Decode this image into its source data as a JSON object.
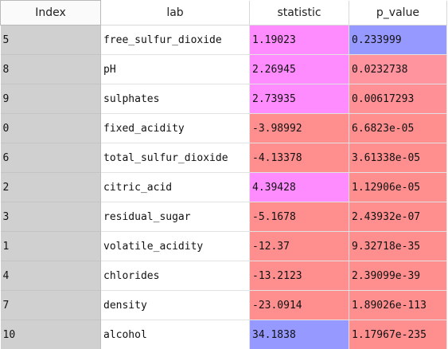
{
  "columns": [
    "Index",
    "lab",
    "statistic",
    "p_value"
  ],
  "colors": {
    "stat_pos": "#ff8cff",
    "stat_neg": "#ff8f8f",
    "stat_max": "#9699ff",
    "pval_low": "#ff8f8f",
    "pval_mid": "#ff9898",
    "pval_high": "#9699ff",
    "index_bg": "#d0d0d0"
  },
  "rows": [
    {
      "index": "5",
      "lab": "free_sulfur_dioxide",
      "statistic": "1.19023",
      "p_value": "0.233999",
      "stat_color": "#ff8cff",
      "pval_color": "#9699ff"
    },
    {
      "index": "8",
      "lab": "pH",
      "statistic": "2.26945",
      "p_value": "0.0232738",
      "stat_color": "#ff8cff",
      "pval_color": "#ff939e"
    },
    {
      "index": "9",
      "lab": "sulphates",
      "statistic": "2.73935",
      "p_value": "0.00617293",
      "stat_color": "#ff8cff",
      "pval_color": "#ff9196"
    },
    {
      "index": "0",
      "lab": "fixed_acidity",
      "statistic": "-3.98992",
      "p_value": "6.6823e-05",
      "stat_color": "#ff8f8f",
      "pval_color": "#ff8f8f"
    },
    {
      "index": "6",
      "lab": "total_sulfur_dioxide",
      "statistic": "-4.13378",
      "p_value": "3.61338e-05",
      "stat_color": "#ff8f8f",
      "pval_color": "#ff8f8f"
    },
    {
      "index": "2",
      "lab": "citric_acid",
      "statistic": "4.39428",
      "p_value": "1.12906e-05",
      "stat_color": "#ff8cff",
      "pval_color": "#ff8f8f"
    },
    {
      "index": "3",
      "lab": "residual_sugar",
      "statistic": "-5.1678",
      "p_value": "2.43932e-07",
      "stat_color": "#ff8f8f",
      "pval_color": "#ff8f8f"
    },
    {
      "index": "1",
      "lab": "volatile_acidity",
      "statistic": "-12.37",
      "p_value": "9.32718e-35",
      "stat_color": "#ff8f8f",
      "pval_color": "#ff8f8f"
    },
    {
      "index": "4",
      "lab": "chlorides",
      "statistic": "-13.2123",
      "p_value": "2.39099e-39",
      "stat_color": "#ff8f8f",
      "pval_color": "#ff8f8f"
    },
    {
      "index": "7",
      "lab": "density",
      "statistic": "-23.0914",
      "p_value": "1.89026e-113",
      "stat_color": "#ff8f8f",
      "pval_color": "#ff8f8f"
    },
    {
      "index": "10",
      "lab": "alcohol",
      "statistic": "34.1838",
      "p_value": "1.17967e-235",
      "stat_color": "#9699ff",
      "pval_color": "#ff8f8f"
    }
  ]
}
